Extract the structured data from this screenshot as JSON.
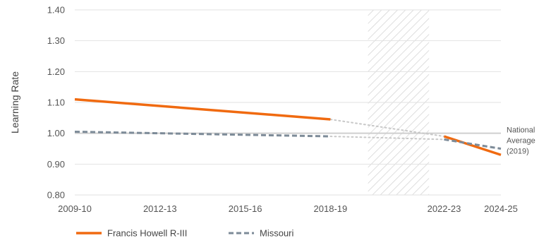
{
  "chart_data": {
    "type": "line",
    "ylabel": "Learning Rate",
    "ylim": [
      0.8,
      1.4
    ],
    "yticks": [
      "0.80",
      "0.90",
      "1.00",
      "1.10",
      "1.20",
      "1.30",
      "1.40"
    ],
    "x_range": [
      2009,
      2024
    ],
    "x_ticks": [
      {
        "label": "2009-10",
        "year": 2009
      },
      {
        "label": "2012-13",
        "year": 2012
      },
      {
        "label": "2015-16",
        "year": 2015
      },
      {
        "label": "2018-19",
        "year": 2018
      },
      {
        "label": "2022-23",
        "year": 2022
      },
      {
        "label": "2024-25",
        "year": 2024
      }
    ],
    "gap_period": [
      2019,
      2021
    ],
    "reference_line": {
      "value": 1.0,
      "label_lines": [
        "National",
        "Average",
        "(2019)"
      ]
    },
    "series": [
      {
        "name": "Francis Howell R-III",
        "color": "#F06A10",
        "style": "solid",
        "segments": [
          [
            {
              "year": 2009,
              "value": 1.11
            },
            {
              "year": 2018,
              "value": 1.045
            }
          ],
          [
            {
              "year": 2022,
              "value": 0.99
            },
            {
              "year": 2024,
              "value": 0.93
            }
          ]
        ],
        "bridge": [
          {
            "year": 2018,
            "value": 1.045
          },
          {
            "year": 2022,
            "value": 0.99
          }
        ]
      },
      {
        "name": "Missouri",
        "color": "#7D8B98",
        "style": "dashed",
        "segments": [
          [
            {
              "year": 2009,
              "value": 1.005
            },
            {
              "year": 2018,
              "value": 0.99
            }
          ],
          [
            {
              "year": 2022,
              "value": 0.98
            },
            {
              "year": 2024,
              "value": 0.95
            }
          ]
        ],
        "bridge": [
          {
            "year": 2018,
            "value": 0.99
          },
          {
            "year": 2022,
            "value": 0.98
          }
        ]
      }
    ],
    "legend_placement": "bottom-left",
    "grid": true
  }
}
